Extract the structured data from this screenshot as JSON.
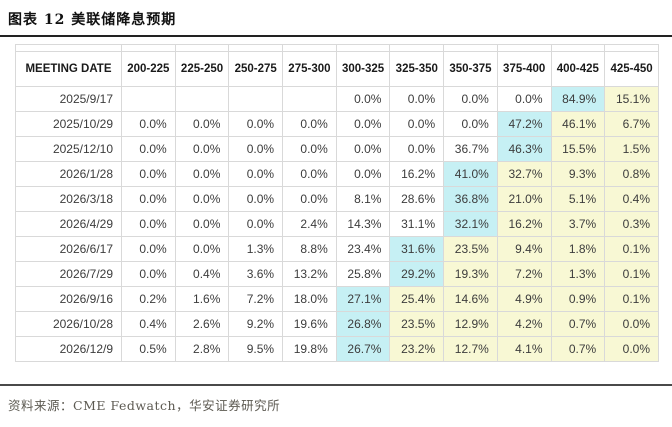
{
  "page": {
    "title": "图表 12 美联储降息预期",
    "source": "资料来源：CME Fedwatch，华安证券研究所"
  },
  "colors": {
    "mode_highlight": "#c6f0f4",
    "tail_highlight": "#f8f8d4",
    "grid_line": "#d9d9d9"
  },
  "table": {
    "columns": [
      "MEETING DATE",
      "200-225",
      "225-250",
      "250-275",
      "275-300",
      "300-325",
      "325-350",
      "350-375",
      "375-400",
      "400-425",
      "425-450"
    ],
    "rows": [
      {
        "date": "2025/9/17",
        "values": [
          "",
          "",
          "",
          "",
          "0.0%",
          "0.0%",
          "0.0%",
          "0.0%",
          "84.9%",
          "15.1%"
        ],
        "cyan_index": 8
      },
      {
        "date": "2025/10/29",
        "values": [
          "0.0%",
          "0.0%",
          "0.0%",
          "0.0%",
          "0.0%",
          "0.0%",
          "0.0%",
          "47.2%",
          "46.1%",
          "6.7%"
        ],
        "cyan_index": 7
      },
      {
        "date": "2025/12/10",
        "values": [
          "0.0%",
          "0.0%",
          "0.0%",
          "0.0%",
          "0.0%",
          "0.0%",
          "36.7%",
          "46.3%",
          "15.5%",
          "1.5%"
        ],
        "cyan_index": 7
      },
      {
        "date": "2026/1/28",
        "values": [
          "0.0%",
          "0.0%",
          "0.0%",
          "0.0%",
          "0.0%",
          "16.2%",
          "41.0%",
          "32.7%",
          "9.3%",
          "0.8%"
        ],
        "cyan_index": 6
      },
      {
        "date": "2026/3/18",
        "values": [
          "0.0%",
          "0.0%",
          "0.0%",
          "0.0%",
          "8.1%",
          "28.6%",
          "36.8%",
          "21.0%",
          "5.1%",
          "0.4%"
        ],
        "cyan_index": 6
      },
      {
        "date": "2026/4/29",
        "values": [
          "0.0%",
          "0.0%",
          "0.0%",
          "2.4%",
          "14.3%",
          "31.1%",
          "32.1%",
          "16.2%",
          "3.7%",
          "0.3%"
        ],
        "cyan_index": 6
      },
      {
        "date": "2026/6/17",
        "values": [
          "0.0%",
          "0.0%",
          "1.3%",
          "8.8%",
          "23.4%",
          "31.6%",
          "23.5%",
          "9.4%",
          "1.8%",
          "0.1%"
        ],
        "cyan_index": 5
      },
      {
        "date": "2026/7/29",
        "values": [
          "0.0%",
          "0.4%",
          "3.6%",
          "13.2%",
          "25.8%",
          "29.2%",
          "19.3%",
          "7.2%",
          "1.3%",
          "0.1%"
        ],
        "cyan_index": 5
      },
      {
        "date": "2026/9/16",
        "values": [
          "0.2%",
          "1.6%",
          "7.2%",
          "18.0%",
          "27.1%",
          "25.4%",
          "14.6%",
          "4.9%",
          "0.9%",
          "0.1%"
        ],
        "cyan_index": 4
      },
      {
        "date": "2026/10/28",
        "values": [
          "0.4%",
          "2.6%",
          "9.2%",
          "19.6%",
          "26.8%",
          "23.5%",
          "12.9%",
          "4.2%",
          "0.7%",
          "0.0%"
        ],
        "cyan_index": 4
      },
      {
        "date": "2026/12/9",
        "values": [
          "0.5%",
          "2.8%",
          "9.5%",
          "19.8%",
          "26.7%",
          "23.2%",
          "12.7%",
          "4.1%",
          "0.7%",
          "0.0%"
        ],
        "cyan_index": 4
      }
    ]
  }
}
